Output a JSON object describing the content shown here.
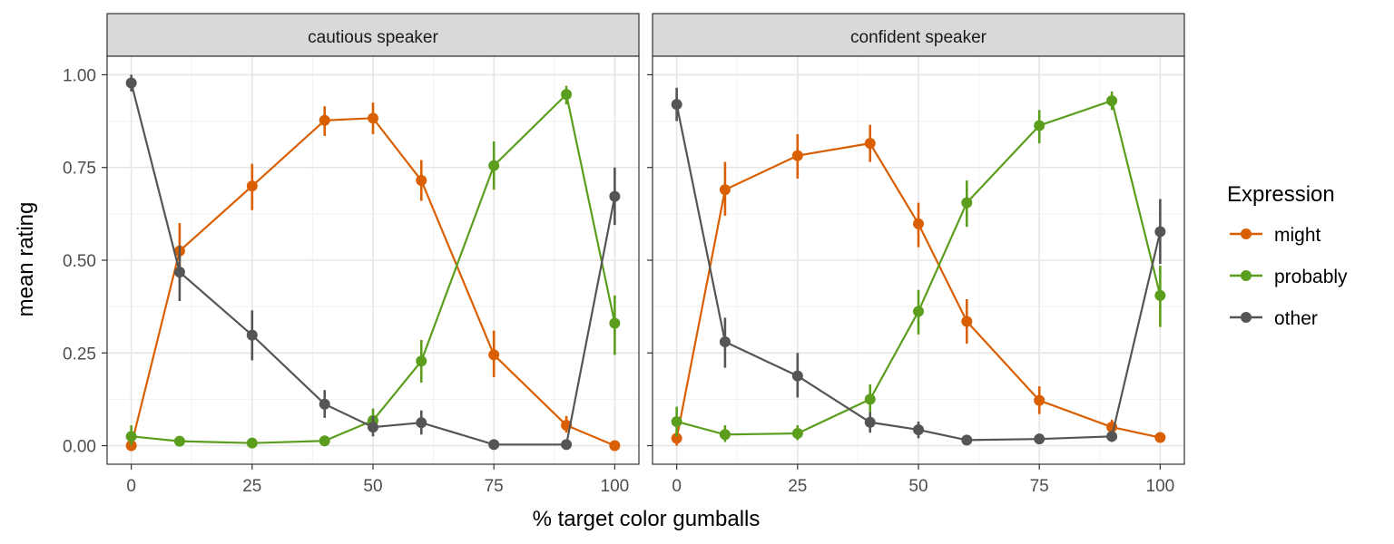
{
  "chart_data": {
    "type": "line",
    "xlabel": "% target color gumballs",
    "ylabel": "mean rating",
    "x": [
      0,
      10,
      25,
      40,
      50,
      60,
      75,
      90,
      100
    ],
    "xlim": [
      -5,
      105
    ],
    "ylim": [
      -0.05,
      1.05
    ],
    "xticks": [
      0,
      25,
      50,
      75,
      100
    ],
    "xtick_labels": [
      "0",
      "25",
      "50",
      "75",
      "100"
    ],
    "yticks": [
      0,
      0.25,
      0.5,
      0.75,
      1.0
    ],
    "ytick_labels": [
      "0.00",
      "0.25",
      "0.50",
      "0.75",
      "1.00"
    ],
    "grid": true,
    "legend": {
      "title": "Expression",
      "position": "right",
      "entries": [
        "might",
        "probably",
        "other"
      ]
    },
    "colors": {
      "might": "#d95f02",
      "probably": "#5b9e1e",
      "other": "#555555"
    },
    "panels": [
      {
        "title": "cautious speaker",
        "series": [
          {
            "name": "might",
            "values": [
              0.0,
              0.525,
              0.7,
              0.877,
              0.883,
              0.715,
              0.245,
              0.055,
              0.0
            ],
            "lower": [
              0.0,
              0.445,
              0.635,
              0.835,
              0.84,
              0.66,
              0.185,
              0.035,
              0.0
            ],
            "upper": [
              0.0,
              0.6,
              0.76,
              0.915,
              0.925,
              0.77,
              0.31,
              0.08,
              0.0
            ]
          },
          {
            "name": "probably",
            "values": [
              0.025,
              0.012,
              0.007,
              0.013,
              0.068,
              0.228,
              0.755,
              0.947,
              0.33
            ],
            "lower": [
              0.0,
              0.0,
              0.0,
              0.0,
              0.04,
              0.17,
              0.69,
              0.92,
              0.245
            ],
            "upper": [
              0.055,
              0.025,
              0.015,
              0.025,
              0.1,
              0.285,
              0.82,
              0.97,
              0.405
            ]
          },
          {
            "name": "other",
            "values": [
              0.978,
              0.468,
              0.298,
              0.112,
              0.05,
              0.062,
              0.003,
              0.003,
              0.672
            ],
            "lower": [
              0.955,
              0.39,
              0.23,
              0.075,
              0.025,
              0.03,
              0.0,
              0.0,
              0.595
            ],
            "upper": [
              1.0,
              0.54,
              0.365,
              0.15,
              0.08,
              0.095,
              0.008,
              0.008,
              0.75
            ]
          }
        ]
      },
      {
        "title": "confident speaker",
        "series": [
          {
            "name": "might",
            "values": [
              0.02,
              0.69,
              0.782,
              0.815,
              0.598,
              0.335,
              0.122,
              0.05,
              0.022
            ],
            "lower": [
              0.0,
              0.62,
              0.72,
              0.765,
              0.535,
              0.275,
              0.085,
              0.03,
              0.01
            ],
            "upper": [
              0.04,
              0.765,
              0.84,
              0.865,
              0.655,
              0.395,
              0.16,
              0.07,
              0.035
            ]
          },
          {
            "name": "probably",
            "values": [
              0.065,
              0.03,
              0.033,
              0.125,
              0.362,
              0.655,
              0.863,
              0.93,
              0.405
            ],
            "lower": [
              0.025,
              0.01,
              0.015,
              0.085,
              0.3,
              0.59,
              0.815,
              0.905,
              0.32
            ],
            "upper": [
              0.105,
              0.055,
              0.055,
              0.165,
              0.42,
              0.715,
              0.905,
              0.955,
              0.485
            ]
          },
          {
            "name": "other",
            "values": [
              0.92,
              0.28,
              0.188,
              0.063,
              0.043,
              0.015,
              0.018,
              0.025,
              0.577
            ],
            "lower": [
              0.875,
              0.21,
              0.13,
              0.035,
              0.02,
              0.005,
              0.005,
              0.01,
              0.49
            ],
            "upper": [
              0.965,
              0.345,
              0.25,
              0.09,
              0.065,
              0.025,
              0.03,
              0.04,
              0.665
            ]
          }
        ]
      }
    ]
  }
}
